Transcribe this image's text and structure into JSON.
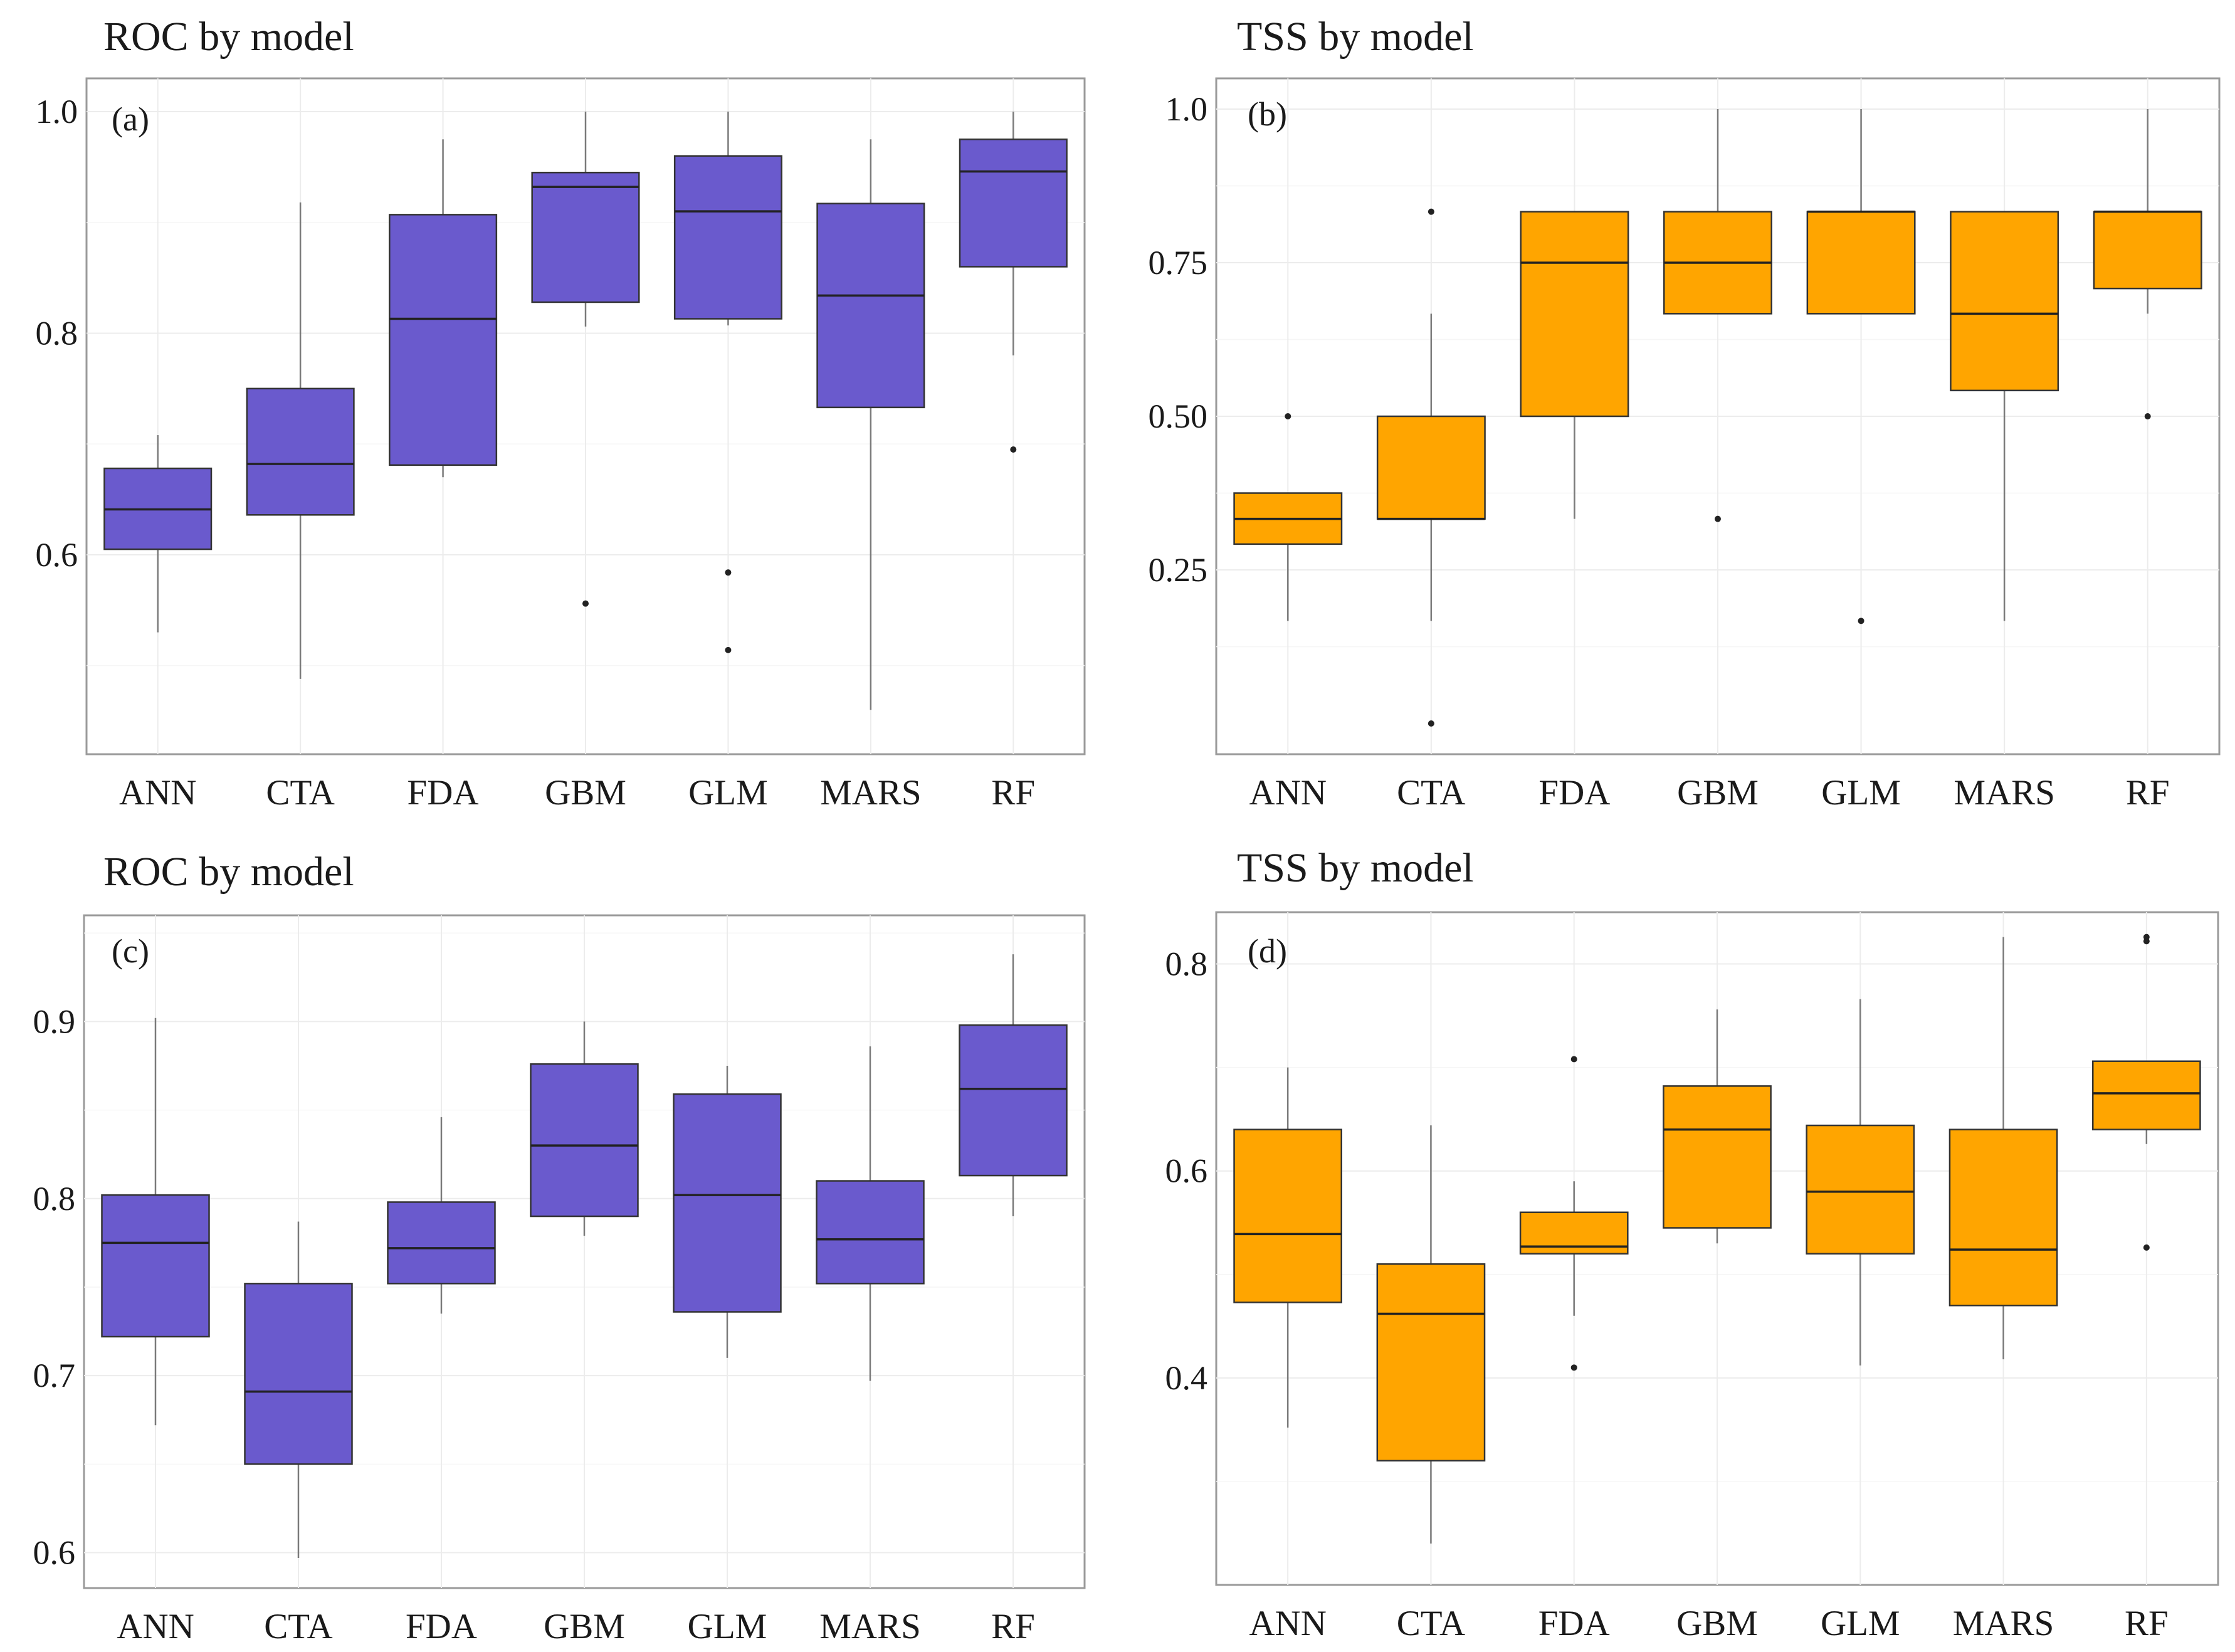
{
  "colors": {
    "roc": "#6A5ACD",
    "tss": "#FFA500"
  },
  "chart_data": [
    {
      "id": "a",
      "type": "box",
      "title": "ROC by model",
      "panel_label": "(a)",
      "color_key": "roc",
      "ylim": [
        0.42,
        1.03
      ],
      "yticks": [
        0.6,
        0.8,
        1.0
      ],
      "ytick_labels": [
        "0.6",
        "0.8",
        "1.0"
      ],
      "categories": [
        "ANN",
        "CTA",
        "FDA",
        "GBM",
        "GLM",
        "MARS",
        "RF"
      ],
      "boxes": [
        {
          "lo": 0.53,
          "q1": 0.605,
          "med": 0.641,
          "q3": 0.678,
          "hi": 0.708,
          "outliers": []
        },
        {
          "lo": 0.488,
          "q1": 0.636,
          "med": 0.682,
          "q3": 0.75,
          "hi": 0.918,
          "outliers": []
        },
        {
          "lo": 0.67,
          "q1": 0.681,
          "med": 0.813,
          "q3": 0.907,
          "hi": 0.975,
          "outliers": []
        },
        {
          "lo": 0.806,
          "q1": 0.828,
          "med": 0.932,
          "q3": 0.945,
          "hi": 1.0,
          "outliers": [
            0.556
          ]
        },
        {
          "lo": 0.807,
          "q1": 0.813,
          "med": 0.91,
          "q3": 0.96,
          "hi": 1.0,
          "outliers": [
            0.584,
            0.514
          ]
        },
        {
          "lo": 0.46,
          "q1": 0.733,
          "med": 0.834,
          "q3": 0.917,
          "hi": 0.975,
          "outliers": []
        },
        {
          "lo": 0.78,
          "q1": 0.86,
          "med": 0.946,
          "q3": 0.975,
          "hi": 1.0,
          "outliers": [
            0.695
          ]
        }
      ]
    },
    {
      "id": "b",
      "type": "box",
      "title": "TSS by model",
      "panel_label": "(b)",
      "color_key": "tss",
      "ylim": [
        -0.05,
        1.05
      ],
      "yticks": [
        0.25,
        0.5,
        0.75,
        1.0
      ],
      "ytick_labels": [
        "0.25",
        "0.50",
        "0.75",
        "1.0"
      ],
      "categories": [
        "ANN",
        "CTA",
        "FDA",
        "GBM",
        "GLM",
        "MARS",
        "RF"
      ],
      "boxes": [
        {
          "lo": 0.167,
          "q1": 0.292,
          "med": 0.333,
          "q3": 0.375,
          "hi": 0.375,
          "outliers": [
            0.5
          ]
        },
        {
          "lo": 0.167,
          "q1": 0.333,
          "med": 0.333,
          "q3": 0.5,
          "hi": 0.667,
          "outliers": [
            0.833,
            0.0
          ]
        },
        {
          "lo": 0.333,
          "q1": 0.5,
          "med": 0.75,
          "q3": 0.833,
          "hi": 0.833,
          "outliers": []
        },
        {
          "lo": 0.667,
          "q1": 0.667,
          "med": 0.75,
          "q3": 0.833,
          "hi": 1.0,
          "outliers": [
            0.333
          ]
        },
        {
          "lo": 0.667,
          "q1": 0.667,
          "med": 0.833,
          "q3": 0.833,
          "hi": 1.0,
          "outliers": [
            0.167
          ]
        },
        {
          "lo": 0.167,
          "q1": 0.542,
          "med": 0.667,
          "q3": 0.833,
          "hi": 0.833,
          "outliers": []
        },
        {
          "lo": 0.667,
          "q1": 0.708,
          "med": 0.833,
          "q3": 0.833,
          "hi": 1.0,
          "outliers": [
            0.5
          ]
        }
      ]
    },
    {
      "id": "c",
      "type": "box",
      "title": "ROC by model",
      "panel_label": "(c)",
      "color_key": "roc",
      "ylim": [
        0.58,
        0.96
      ],
      "yticks": [
        0.6,
        0.7,
        0.8,
        0.9
      ],
      "ytick_labels": [
        "0.6",
        "0.7",
        "0.8",
        "0.9"
      ],
      "categories": [
        "ANN",
        "CTA",
        "FDA",
        "GBM",
        "GLM",
        "MARS",
        "RF"
      ],
      "boxes": [
        {
          "lo": 0.672,
          "q1": 0.722,
          "med": 0.775,
          "q3": 0.802,
          "hi": 0.902,
          "outliers": []
        },
        {
          "lo": 0.597,
          "q1": 0.65,
          "med": 0.691,
          "q3": 0.752,
          "hi": 0.787,
          "outliers": []
        },
        {
          "lo": 0.735,
          "q1": 0.752,
          "med": 0.772,
          "q3": 0.798,
          "hi": 0.846,
          "outliers": []
        },
        {
          "lo": 0.779,
          "q1": 0.79,
          "med": 0.83,
          "q3": 0.876,
          "hi": 0.9,
          "outliers": []
        },
        {
          "lo": 0.71,
          "q1": 0.736,
          "med": 0.802,
          "q3": 0.859,
          "hi": 0.875,
          "outliers": []
        },
        {
          "lo": 0.697,
          "q1": 0.752,
          "med": 0.777,
          "q3": 0.81,
          "hi": 0.886,
          "outliers": []
        },
        {
          "lo": 0.79,
          "q1": 0.813,
          "med": 0.862,
          "q3": 0.898,
          "hi": 0.938,
          "outliers": []
        }
      ]
    },
    {
      "id": "d",
      "type": "box",
      "title": "TSS by model",
      "panel_label": "(d)",
      "color_key": "tss",
      "ylim": [
        0.2,
        0.85
      ],
      "yticks": [
        0.4,
        0.6,
        0.8
      ],
      "ytick_labels": [
        "0.4",
        "0.6",
        "0.8"
      ],
      "categories": [
        "ANN",
        "CTA",
        "FDA",
        "GBM",
        "GLM",
        "MARS",
        "RF"
      ],
      "boxes": [
        {
          "lo": 0.352,
          "q1": 0.473,
          "med": 0.539,
          "q3": 0.64,
          "hi": 0.7,
          "outliers": []
        },
        {
          "lo": 0.24,
          "q1": 0.32,
          "med": 0.462,
          "q3": 0.51,
          "hi": 0.644,
          "outliers": []
        },
        {
          "lo": 0.46,
          "q1": 0.52,
          "med": 0.527,
          "q3": 0.56,
          "hi": 0.59,
          "outliers": [
            0.708,
            0.41
          ]
        },
        {
          "lo": 0.53,
          "q1": 0.545,
          "med": 0.64,
          "q3": 0.682,
          "hi": 0.756,
          "outliers": []
        },
        {
          "lo": 0.412,
          "q1": 0.52,
          "med": 0.58,
          "q3": 0.644,
          "hi": 0.766,
          "outliers": []
        },
        {
          "lo": 0.418,
          "q1": 0.47,
          "med": 0.524,
          "q3": 0.64,
          "hi": 0.826,
          "outliers": []
        },
        {
          "lo": 0.626,
          "q1": 0.64,
          "med": 0.675,
          "q3": 0.706,
          "hi": 0.706,
          "outliers": [
            0.826,
            0.822,
            0.526
          ]
        }
      ]
    }
  ]
}
